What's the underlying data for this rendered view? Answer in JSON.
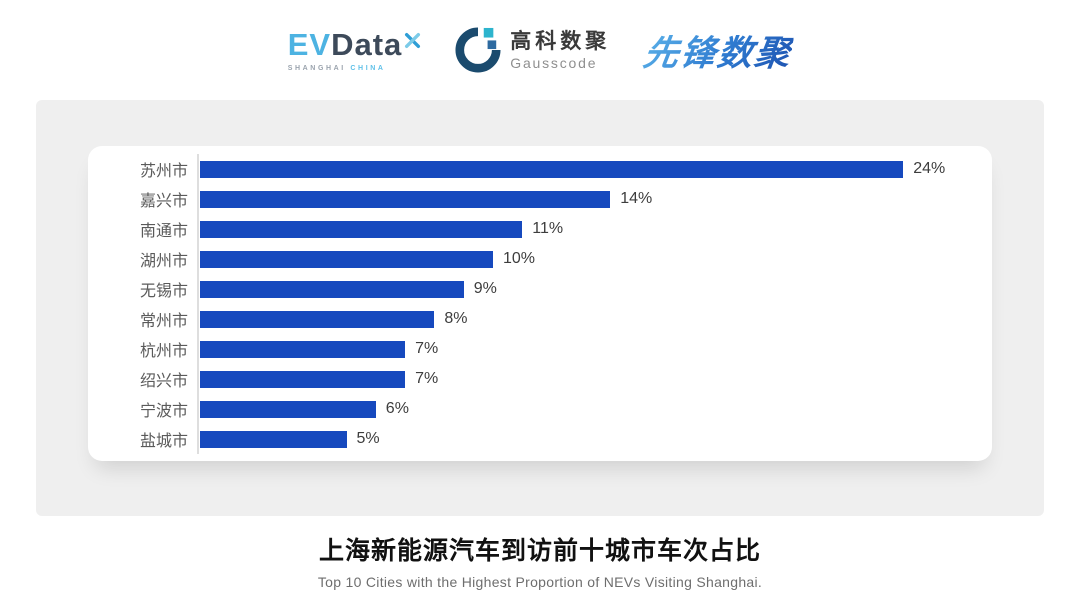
{
  "header": {
    "evdata": {
      "ev": "EV",
      "data": "Data",
      "caption_left": "SHANGHAI",
      "caption_right": "CHINA"
    },
    "gausscode": {
      "name_cn": "高科数聚",
      "name_en": "Gausscode"
    },
    "xianfeng": {
      "name_cn": "先锋数聚"
    }
  },
  "chart_data": {
    "type": "bar",
    "orientation": "horizontal",
    "categories": [
      "苏州市",
      "嘉兴市",
      "南通市",
      "湖州市",
      "无锡市",
      "常州市",
      "杭州市",
      "绍兴市",
      "宁波市",
      "盐城市"
    ],
    "values": [
      24,
      14,
      11,
      10,
      9,
      8,
      7,
      7,
      6,
      5
    ],
    "value_labels": [
      "24%",
      "14%",
      "11%",
      "10%",
      "9%",
      "8%",
      "7%",
      "7%",
      "6%",
      "5%"
    ],
    "unit": "%",
    "xlim": [
      0,
      25.5
    ],
    "grid": false,
    "legend": false,
    "bar_color": "#1649be",
    "axis_line_color": "#dedede",
    "category_label_color": "#5a5a5a",
    "value_label_color": "#3d3d3d"
  },
  "footer": {
    "title": "上海新能源汽车到访前十城市车次占比",
    "subtitle": "Top 10 Cities with the Highest Proportion of  NEVs Visiting Shanghai."
  },
  "colors": {
    "panel_background": "#efefef",
    "card_background": "#ffffff",
    "evdata_blue": "#4db3e2",
    "evdata_dark": "#3d4a5a",
    "gauss_navy": "#1b4b6e",
    "gauss_teal": "#2db4cd",
    "xianfeng_gradient_start": "#5db4ea",
    "xianfeng_gradient_end": "#1d52b0"
  }
}
